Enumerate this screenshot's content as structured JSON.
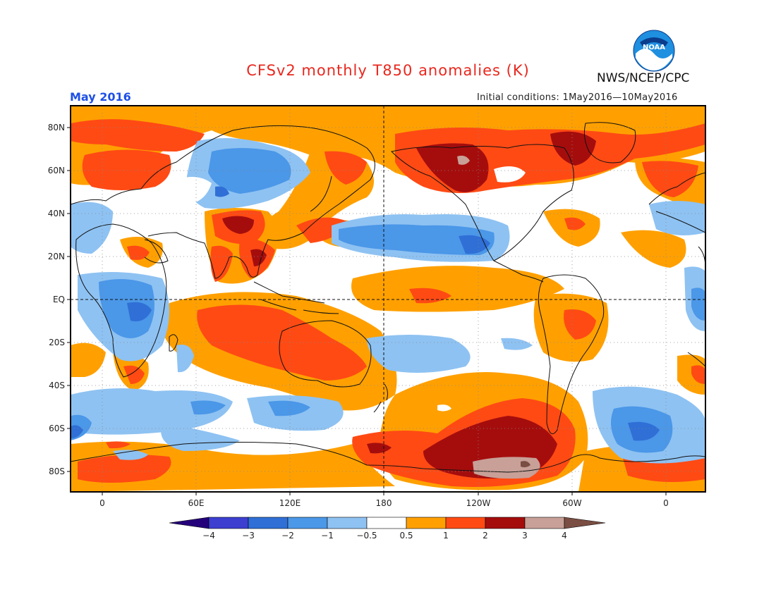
{
  "title": "CFSv2 monthly T850 anomalies (K)",
  "agency": "NWS/NCEP/CPC",
  "logo_text": "NOAA",
  "month": "May 2016",
  "initial_conditions": "Initial conditions: 1May2016—10May2016",
  "lat_labels": [
    "80N",
    "60N",
    "40N",
    "20N",
    "EQ",
    "20S",
    "40S",
    "60S",
    "80S"
  ],
  "lon_labels": [
    "0",
    "60E",
    "120E",
    "180",
    "120W",
    "60W",
    "0"
  ],
  "colorbar": {
    "labels": [
      "−4",
      "−3",
      "−2",
      "−1",
      "−0.5",
      "0.5",
      "1",
      "2",
      "3",
      "4"
    ],
    "colors": {
      "lt_m4": "#24007a",
      "m4_m3": "#3c3fd0",
      "m3_m2": "#2f6fd6",
      "m2_m1": "#4b97e8",
      "m1_m05": "#8ec2f2",
      "m05_05": "#ffffff",
      "p05_1": "#ffa000",
      "p1_2": "#ff4a14",
      "p2_3": "#a50d0d",
      "p3_4": "#c8a097",
      "gt_4": "#7a4e43"
    }
  }
}
